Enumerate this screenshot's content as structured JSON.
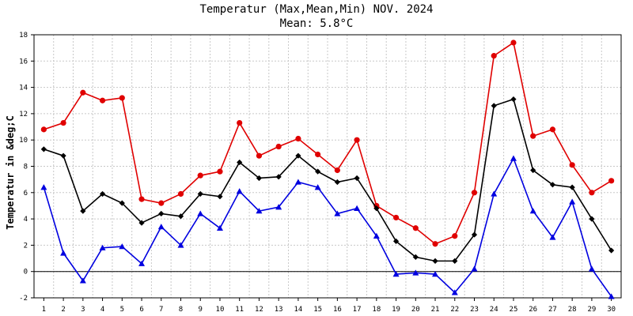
{
  "chart_data": {
    "type": "line",
    "title": "Temperatur (Max,Mean,Min) NOV. 2024",
    "subtitle": "Mean: 5.8°C",
    "ylabel": "Temperatur in &deg;C",
    "xlabel": "",
    "ylim": [
      -2,
      18
    ],
    "yticks": [
      "-2",
      "0",
      "2",
      "4",
      "6",
      "8",
      "10",
      "12",
      "14",
      "16",
      "18"
    ],
    "x": [
      "1",
      "2",
      "3",
      "4",
      "5",
      "6",
      "7",
      "8",
      "9",
      "10",
      "11",
      "12",
      "13",
      "14",
      "15",
      "16",
      "17",
      "18",
      "19",
      "20",
      "21",
      "22",
      "23",
      "24",
      "25",
      "26",
      "27",
      "28",
      "29",
      "30"
    ],
    "grid": true,
    "series": [
      {
        "marker": "circle",
        "color": "#e00000",
        "values": [
          10.8,
          11.3,
          13.6,
          13.0,
          13.2,
          5.5,
          5.2,
          5.9,
          7.3,
          7.6,
          11.3,
          8.8,
          9.5,
          10.1,
          8.9,
          7.7,
          10.0,
          5.0,
          4.1,
          3.3,
          2.1,
          2.7,
          6.0,
          16.4,
          17.4,
          10.3,
          10.8,
          8.1,
          6.0,
          6.9
        ]
      },
      {
        "marker": "diamond",
        "color": "#000000",
        "values": [
          9.3,
          8.8,
          4.6,
          5.9,
          5.2,
          3.7,
          4.4,
          4.2,
          5.9,
          5.7,
          8.3,
          7.1,
          7.2,
          8.8,
          7.6,
          6.8,
          7.1,
          4.8,
          2.3,
          1.1,
          0.8,
          0.8,
          2.8,
          12.6,
          13.1,
          7.7,
          6.6,
          6.4,
          4.0,
          1.6
        ]
      },
      {
        "marker": "triangle",
        "color": "#0000e0",
        "values": [
          6.4,
          1.4,
          -0.7,
          1.8,
          1.9,
          0.6,
          3.4,
          2.0,
          4.4,
          3.3,
          6.1,
          4.6,
          4.9,
          6.8,
          6.4,
          4.4,
          4.8,
          2.7,
          -0.2,
          -0.1,
          -0.2,
          -1.6,
          0.2,
          5.9,
          8.6,
          4.6,
          2.6,
          5.3,
          0.2,
          -1.9
        ]
      }
    ]
  }
}
